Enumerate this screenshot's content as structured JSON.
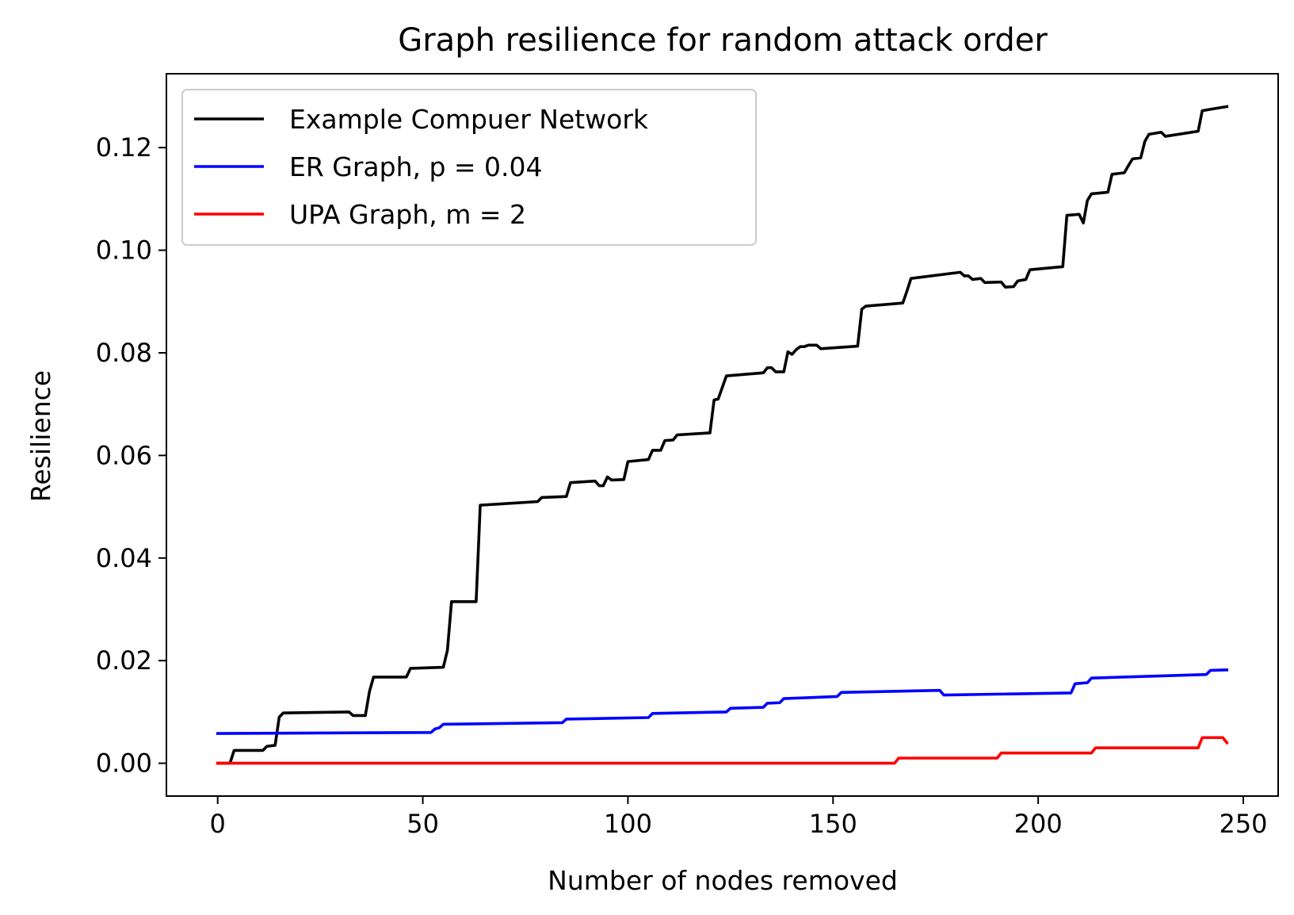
{
  "chart_data": {
    "type": "line",
    "title": "Graph resilience for random attack order",
    "xlabel": "Number of nodes removed",
    "ylabel": "Resilience",
    "xlim": [
      -12.5,
      258.5
    ],
    "ylim": [
      -0.0064,
      0.1344
    ],
    "xticks": [
      0,
      50,
      100,
      150,
      200,
      250
    ],
    "xtick_labels": [
      "0",
      "50",
      "100",
      "150",
      "200",
      "250"
    ],
    "yticks": [
      0.0,
      0.02,
      0.04,
      0.06,
      0.08,
      0.1,
      0.12
    ],
    "ytick_labels": [
      "0.00",
      "0.02",
      "0.04",
      "0.06",
      "0.08",
      "0.10",
      "0.12"
    ],
    "grid": false,
    "legend_position": "upper-left",
    "series": [
      {
        "name": "Example Compuer Network",
        "color": "#000000",
        "points": [
          [
            0,
            0
          ],
          [
            3,
            0
          ],
          [
            4,
            0.0025
          ],
          [
            11,
            0.0025
          ],
          [
            12,
            0.0033
          ],
          [
            14,
            0.0035
          ],
          [
            15,
            0.009
          ],
          [
            16,
            0.0098
          ],
          [
            32,
            0.01
          ],
          [
            33,
            0.0093
          ],
          [
            36,
            0.0093
          ],
          [
            37,
            0.014
          ],
          [
            38,
            0.0168
          ],
          [
            46,
            0.0168
          ],
          [
            47,
            0.0185
          ],
          [
            55,
            0.0187
          ],
          [
            56,
            0.022
          ],
          [
            57,
            0.0315
          ],
          [
            63,
            0.0315
          ],
          [
            64,
            0.0503
          ],
          [
            78,
            0.051
          ],
          [
            79,
            0.0518
          ],
          [
            85,
            0.052
          ],
          [
            86,
            0.0547
          ],
          [
            92,
            0.055
          ],
          [
            93,
            0.0541
          ],
          [
            94,
            0.0541
          ],
          [
            95,
            0.0558
          ],
          [
            96,
            0.0552
          ],
          [
            99,
            0.0553
          ],
          [
            100,
            0.0588
          ],
          [
            105,
            0.0592
          ],
          [
            106,
            0.061
          ],
          [
            108,
            0.061
          ],
          [
            109,
            0.0629
          ],
          [
            111,
            0.063
          ],
          [
            112,
            0.064
          ],
          [
            120,
            0.0644
          ],
          [
            121,
            0.0708
          ],
          [
            122,
            0.071
          ],
          [
            124,
            0.0755
          ],
          [
            133,
            0.0761
          ],
          [
            134,
            0.0771
          ],
          [
            135,
            0.0771
          ],
          [
            136,
            0.0763
          ],
          [
            138,
            0.0763
          ],
          [
            139,
            0.0802
          ],
          [
            140,
            0.0797
          ],
          [
            141,
            0.0806
          ],
          [
            142,
            0.0812
          ],
          [
            143,
            0.0812
          ],
          [
            144,
            0.0815
          ],
          [
            146,
            0.0815
          ],
          [
            147,
            0.0808
          ],
          [
            156,
            0.0813
          ],
          [
            157,
            0.0885
          ],
          [
            158,
            0.0891
          ],
          [
            167,
            0.0897
          ],
          [
            168,
            0.092
          ],
          [
            169,
            0.0945
          ],
          [
            181,
            0.0957
          ],
          [
            182,
            0.095
          ],
          [
            183,
            0.095
          ],
          [
            184,
            0.0943
          ],
          [
            186,
            0.0945
          ],
          [
            187,
            0.0937
          ],
          [
            191,
            0.0938
          ],
          [
            192,
            0.0928
          ],
          [
            194,
            0.0929
          ],
          [
            195,
            0.094
          ],
          [
            197,
            0.0943
          ],
          [
            198,
            0.0962
          ],
          [
            206,
            0.0968
          ],
          [
            207,
            0.1068
          ],
          [
            210,
            0.107
          ],
          [
            211,
            0.1053
          ],
          [
            212,
            0.1097
          ],
          [
            213,
            0.111
          ],
          [
            217,
            0.1113
          ],
          [
            218,
            0.1148
          ],
          [
            221,
            0.1151
          ],
          [
            222,
            0.1165
          ],
          [
            223,
            0.1178
          ],
          [
            225,
            0.118
          ],
          [
            226,
            0.1212
          ],
          [
            227,
            0.1226
          ],
          [
            230,
            0.123
          ],
          [
            231,
            0.1222
          ],
          [
            239,
            0.1232
          ],
          [
            240,
            0.1272
          ],
          [
            246,
            0.128
          ]
        ]
      },
      {
        "name": "ER Graph, p = 0.04",
        "color": "#0000ff",
        "points": [
          [
            0,
            0.0058
          ],
          [
            52,
            0.006
          ],
          [
            53,
            0.0067
          ],
          [
            54,
            0.0069
          ],
          [
            55,
            0.0076
          ],
          [
            84,
            0.0079
          ],
          [
            85,
            0.0086
          ],
          [
            105,
            0.0089
          ],
          [
            106,
            0.0097
          ],
          [
            124,
            0.01
          ],
          [
            125,
            0.0107
          ],
          [
            133,
            0.0109
          ],
          [
            134,
            0.0117
          ],
          [
            137,
            0.0118
          ],
          [
            138,
            0.0126
          ],
          [
            151,
            0.013
          ],
          [
            152,
            0.0138
          ],
          [
            176,
            0.0142
          ],
          [
            177,
            0.0133
          ],
          [
            208,
            0.0137
          ],
          [
            209,
            0.0155
          ],
          [
            212,
            0.0157
          ],
          [
            213,
            0.0166
          ],
          [
            241,
            0.0173
          ],
          [
            242,
            0.0181
          ],
          [
            246,
            0.0182
          ]
        ]
      },
      {
        "name": "UPA Graph, m = 2",
        "color": "#ff0000",
        "points": [
          [
            0,
            0
          ],
          [
            165,
            0
          ],
          [
            166,
            0.001
          ],
          [
            190,
            0.001
          ],
          [
            191,
            0.002
          ],
          [
            213,
            0.002
          ],
          [
            214,
            0.003
          ],
          [
            239,
            0.003
          ],
          [
            240,
            0.005
          ],
          [
            245,
            0.005
          ],
          [
            246,
            0.004
          ]
        ]
      }
    ]
  }
}
